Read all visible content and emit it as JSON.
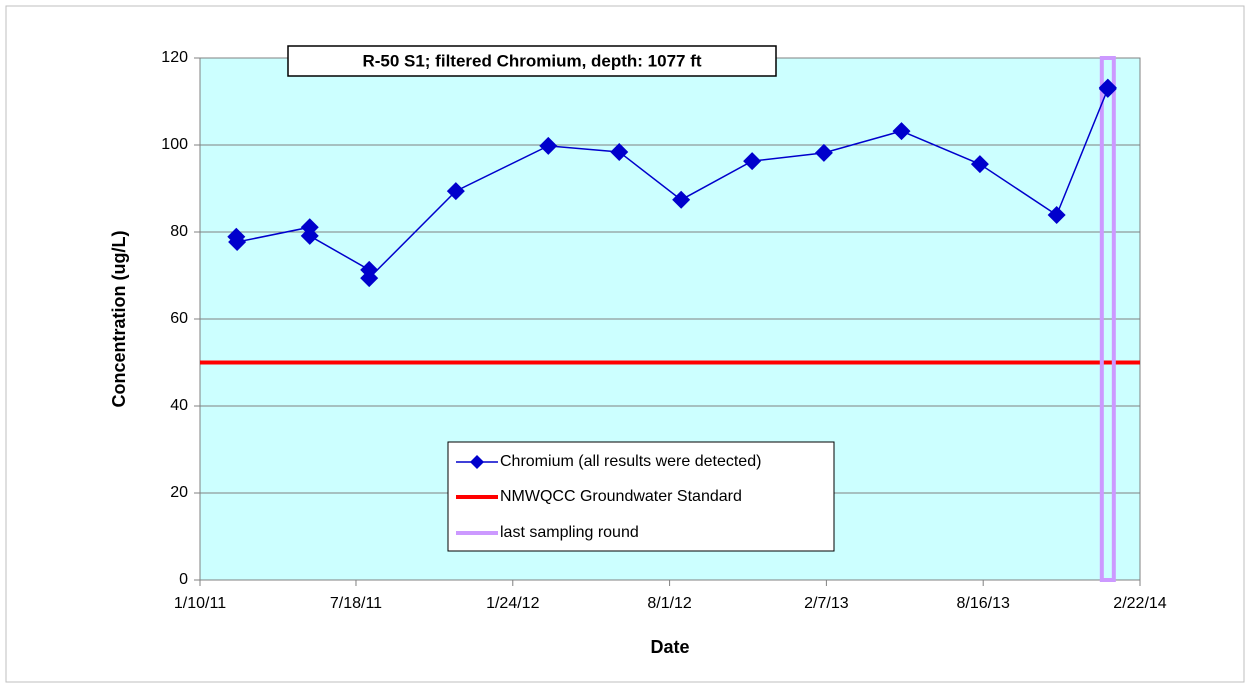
{
  "chart_data": {
    "type": "line",
    "title": "R-50 S1;  filtered Chromium, depth: 1077 ft",
    "x_label": "Date",
    "y_label": "Concentration (ug/L)",
    "xlim": [
      "2011-01-10",
      "2014-02-22"
    ],
    "xticks": [
      {
        "value": "2011-01-10",
        "label": "1/10/11"
      },
      {
        "value": "2011-07-18",
        "label": "7/18/11"
      },
      {
        "value": "2012-01-24",
        "label": "1/24/12"
      },
      {
        "value": "2012-08-01",
        "label": "8/1/12"
      },
      {
        "value": "2013-02-07",
        "label": "2/7/13"
      },
      {
        "value": "2013-08-16",
        "label": "8/16/13"
      },
      {
        "value": "2014-02-22",
        "label": "2/22/14"
      }
    ],
    "ylim": [
      0,
      120
    ],
    "yticks": [
      0,
      20,
      40,
      60,
      80,
      100,
      120
    ],
    "grid": true,
    "plot_background": "#ccffff",
    "series": [
      {
        "name": "Chromium (all results were detected)",
        "color": "#0000cc",
        "x": [
          "2011-02-23",
          "2011-02-24",
          "2011-05-23",
          "2011-05-23",
          "2011-08-03",
          "2011-08-03",
          "2011-11-16",
          "2012-03-07",
          "2012-06-01",
          "2012-08-15",
          "2012-11-09",
          "2013-02-04",
          "2013-05-09",
          "2013-08-12",
          "2013-11-13",
          "2014-01-14",
          "2014-01-14"
        ],
        "values": [
          78.9,
          77.7,
          81.1,
          79.1,
          71.3,
          69.4,
          89.4,
          99.8,
          98.4,
          87.4,
          96.3,
          98.2,
          103.2,
          95.6,
          83.9,
          112.9,
          113.2
        ]
      }
    ],
    "standard": {
      "name": "NMWQCC Groundwater Standard",
      "color": "#ff0000",
      "value": 50
    },
    "last_sampling_round": {
      "name": "last sampling round",
      "color": "#cc99ff",
      "x": "2014-01-14"
    }
  }
}
